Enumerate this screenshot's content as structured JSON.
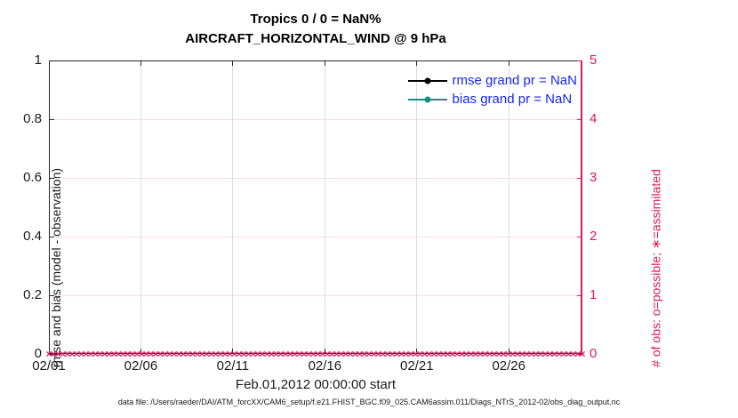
{
  "figure": {
    "title_line1": "Tropics 0 / 0 = NaN%",
    "title_line2": "AIRCRAFT_HORIZONTAL_WIND @ 9 hPa",
    "xlabel": "Feb.01,2012 00:00:00 start",
    "ylabel_left": "rmse and bias (model - observation)",
    "ylabel_right": "# of obs: o=possible; ∗=assimilated",
    "footer": "data file: /Users/raeder/DAI/ATM_forcXX/CAM6_setup/f.e21.FHIST_BGC.f09_025.CAM6assim.011/Diags_NTrS_2012-02/obs_diag_output.nc"
  },
  "colors": {
    "right_axis": "#d81b60",
    "teal_series": "#149187",
    "black_series": "#000000",
    "legend_text": "#1428f0",
    "grid_pink": "#f9dce7",
    "grid_gray": "#dcdcdc",
    "axis": "#262626",
    "text": "#1a1a1a"
  },
  "legend": {
    "items": [
      {
        "label": "rmse grand pr = NaN",
        "color": "#000000"
      },
      {
        "label": "bias grand pr = NaN",
        "color": "#149187"
      }
    ]
  },
  "chart_data": {
    "type": "line",
    "title": "Tropics 0 / 0 = NaN%  |  AIRCRAFT_HORIZONTAL_WIND @ 9 hPa",
    "summary": {
      "obs_possible": 0,
      "obs_assimilated": 0,
      "percent_used": "NaN"
    },
    "xlabel": "Feb.01,2012 00:00:00 start",
    "x_range_days": [
      0,
      29
    ],
    "x_tick_days": [
      0,
      5,
      10,
      15,
      20,
      25
    ],
    "x_tick_labels": [
      "02/01",
      "02/06",
      "02/11",
      "02/16",
      "02/21",
      "02/26"
    ],
    "left_axis": {
      "label": "rmse and bias (model - observation)",
      "range": [
        0,
        1
      ],
      "ticks": [
        0,
        0.2,
        0.4,
        0.6,
        0.8,
        1
      ],
      "tick_labels": [
        "0",
        "0.2",
        "0.4",
        "0.6",
        "0.8",
        "1"
      ],
      "color": "#1a1a1a"
    },
    "right_axis": {
      "label": "# of obs: o=possible; ∗=assimilated",
      "range": [
        0,
        5
      ],
      "ticks": [
        0,
        1,
        2,
        3,
        4,
        5
      ],
      "tick_labels": [
        "0",
        "1",
        "2",
        "3",
        "4",
        "5"
      ],
      "color": "#d81b60"
    },
    "grid": true,
    "legend_position": "top-right-inside",
    "series": [
      {
        "name": "rmse grand pr = NaN",
        "color": "#000000",
        "marker": "circle",
        "values": "NaN - nothing plotted"
      },
      {
        "name": "bias grand pr = NaN",
        "color": "#149187",
        "marker": "circle",
        "values": "NaN - nothing plotted"
      },
      {
        "name": "assimilated obs count",
        "color": "#d81b60",
        "marker": "x",
        "n_time_bins": 116,
        "constant_value": 0,
        "note": "x markers at right-axis 0 for every time bin across the month"
      }
    ]
  }
}
